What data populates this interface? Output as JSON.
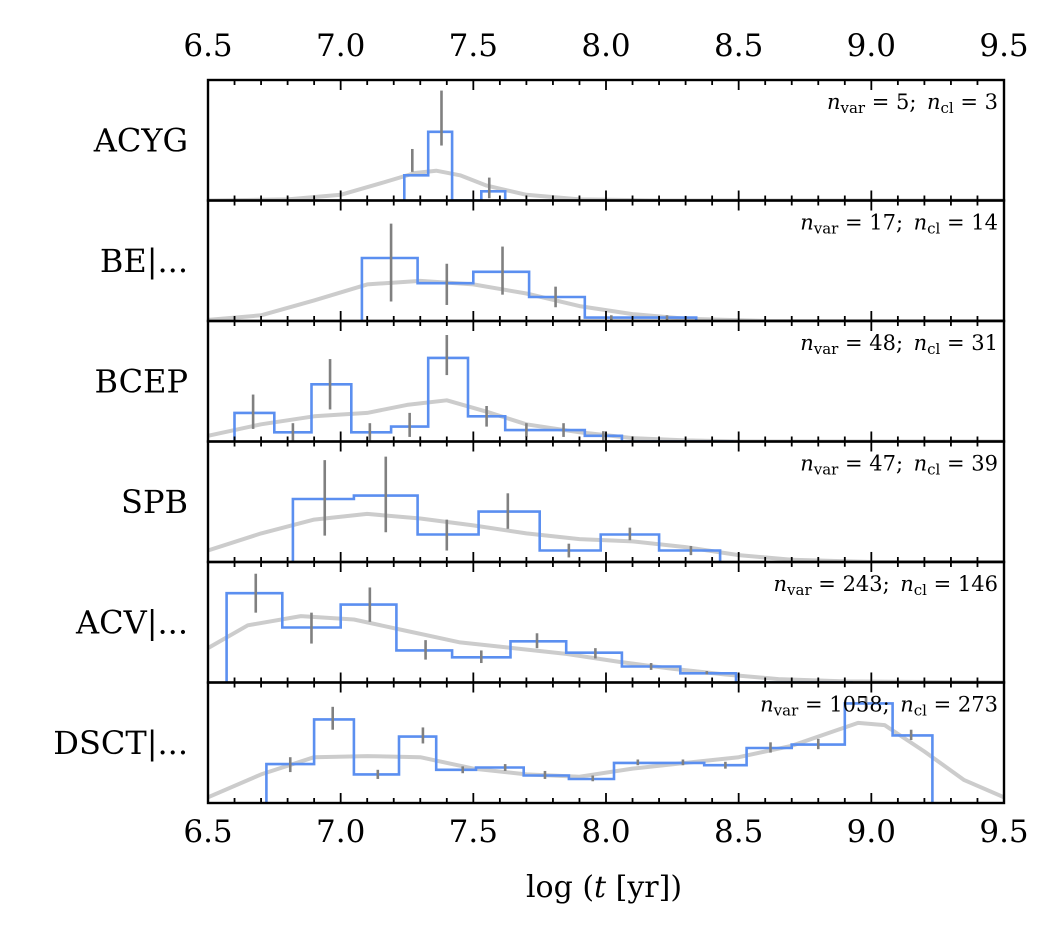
{
  "chart_data": {
    "type": "histogram",
    "xlabel": "log (t [yr])",
    "xlim": [
      6.5,
      9.5
    ],
    "xticks": [
      "6.5",
      "7.0",
      "7.5",
      "8.0",
      "8.5",
      "9.0",
      "9.5"
    ],
    "colors": {
      "hist": "#5b8ff0",
      "kde": "#cccccc",
      "errorbar": "#808080"
    },
    "panels": [
      {
        "label": "ACYG",
        "annotation": "n_var = 5; n_cl = 3",
        "ymax": 1.0,
        "bins": [
          [
            7.24,
            7.33,
            0.22
          ],
          [
            7.33,
            7.42,
            0.6
          ],
          [
            7.42,
            7.53,
            0.0
          ],
          [
            7.53,
            7.62,
            0.08
          ]
        ],
        "errorbars": [
          [
            7.27,
            0.25,
            0.45
          ],
          [
            7.38,
            0.48,
            0.96
          ],
          [
            7.56,
            0.02,
            0.2
          ]
        ],
        "kde": [
          [
            6.5,
            0.0
          ],
          [
            6.8,
            0.01
          ],
          [
            7.0,
            0.05
          ],
          [
            7.15,
            0.15
          ],
          [
            7.28,
            0.24
          ],
          [
            7.36,
            0.26
          ],
          [
            7.45,
            0.22
          ],
          [
            7.55,
            0.13
          ],
          [
            7.7,
            0.05
          ],
          [
            7.9,
            0.01
          ],
          [
            8.2,
            0.0
          ],
          [
            9.5,
            0.0
          ]
        ]
      },
      {
        "label": "BE|...",
        "annotation": "n_var = 17; n_cl = 14",
        "ymax": 1.0,
        "bins": [
          [
            7.08,
            7.29,
            0.55
          ],
          [
            7.29,
            7.5,
            0.33
          ],
          [
            7.5,
            7.71,
            0.43
          ],
          [
            7.71,
            7.92,
            0.21
          ],
          [
            7.92,
            8.13,
            0.03
          ],
          [
            8.13,
            8.34,
            0.03
          ]
        ],
        "errorbars": [
          [
            7.19,
            0.17,
            0.85
          ],
          [
            7.4,
            0.14,
            0.5
          ],
          [
            7.61,
            0.23,
            0.65
          ],
          [
            7.81,
            0.12,
            0.3
          ],
          [
            8.02,
            0.0,
            0.05
          ],
          [
            8.23,
            0.0,
            0.05
          ]
        ],
        "kde": [
          [
            6.5,
            0.01
          ],
          [
            6.7,
            0.05
          ],
          [
            6.9,
            0.18
          ],
          [
            7.1,
            0.32
          ],
          [
            7.3,
            0.35
          ],
          [
            7.5,
            0.32
          ],
          [
            7.7,
            0.24
          ],
          [
            7.9,
            0.13
          ],
          [
            8.1,
            0.06
          ],
          [
            8.3,
            0.02
          ],
          [
            8.6,
            0.0
          ],
          [
            9.5,
            0.0
          ]
        ]
      },
      {
        "label": "BCEP",
        "annotation": "n_var = 48; n_cl = 31",
        "ymax": 1.0,
        "bins": [
          [
            6.6,
            6.75,
            0.25
          ],
          [
            6.75,
            6.89,
            0.08
          ],
          [
            6.89,
            7.04,
            0.5
          ],
          [
            7.04,
            7.19,
            0.08
          ],
          [
            7.19,
            7.33,
            0.13
          ],
          [
            7.33,
            7.48,
            0.73
          ],
          [
            7.48,
            7.62,
            0.22
          ],
          [
            7.62,
            7.77,
            0.1
          ],
          [
            7.77,
            7.92,
            0.1
          ],
          [
            7.92,
            8.06,
            0.05
          ],
          [
            8.06,
            8.21,
            0.0
          ],
          [
            8.21,
            8.48,
            0.0
          ]
        ],
        "errorbars": [
          [
            6.67,
            0.11,
            0.41
          ],
          [
            6.82,
            0.0,
            0.16
          ],
          [
            6.96,
            0.28,
            0.72
          ],
          [
            7.11,
            0.0,
            0.16
          ],
          [
            7.26,
            0.04,
            0.25
          ],
          [
            7.4,
            0.58,
            0.93
          ],
          [
            7.55,
            0.13,
            0.31
          ],
          [
            7.7,
            0.04,
            0.16
          ],
          [
            7.84,
            0.04,
            0.16
          ],
          [
            7.99,
            0.01,
            0.09
          ]
        ],
        "kde": [
          [
            6.5,
            0.05
          ],
          [
            6.7,
            0.15
          ],
          [
            6.9,
            0.22
          ],
          [
            7.1,
            0.25
          ],
          [
            7.25,
            0.32
          ],
          [
            7.4,
            0.36
          ],
          [
            7.55,
            0.26
          ],
          [
            7.7,
            0.15
          ],
          [
            7.9,
            0.08
          ],
          [
            8.1,
            0.03
          ],
          [
            8.3,
            0.01
          ],
          [
            8.5,
            0.0
          ],
          [
            9.5,
            0.0
          ]
        ]
      },
      {
        "label": "SPB",
        "annotation": "n_var = 47; n_cl = 39",
        "ymax": 1.0,
        "bins": [
          [
            6.82,
            7.05,
            0.55
          ],
          [
            7.05,
            7.29,
            0.58
          ],
          [
            7.29,
            7.52,
            0.24
          ],
          [
            7.52,
            7.75,
            0.44
          ],
          [
            7.75,
            7.98,
            0.1
          ],
          [
            7.98,
            8.2,
            0.24
          ],
          [
            8.2,
            8.43,
            0.1
          ]
        ],
        "errorbars": [
          [
            6.94,
            0.23,
            0.89
          ],
          [
            7.17,
            0.26,
            0.92
          ],
          [
            7.4,
            0.1,
            0.37
          ],
          [
            7.63,
            0.29,
            0.6
          ],
          [
            7.86,
            0.04,
            0.16
          ],
          [
            8.09,
            0.19,
            0.3
          ],
          [
            8.32,
            0.06,
            0.14
          ]
        ],
        "kde": [
          [
            6.5,
            0.1
          ],
          [
            6.7,
            0.25
          ],
          [
            6.9,
            0.37
          ],
          [
            7.1,
            0.42
          ],
          [
            7.3,
            0.38
          ],
          [
            7.5,
            0.32
          ],
          [
            7.7,
            0.25
          ],
          [
            7.9,
            0.2
          ],
          [
            8.1,
            0.18
          ],
          [
            8.3,
            0.13
          ],
          [
            8.5,
            0.06
          ],
          [
            8.7,
            0.02
          ],
          [
            9.0,
            0.0
          ],
          [
            9.5,
            0.0
          ]
        ]
      },
      {
        "label": "ACV|...",
        "annotation": "n_var = 243; n_cl = 146",
        "ymax": 1.0,
        "bins": [
          [
            6.57,
            6.78,
            0.78
          ],
          [
            6.78,
            7.0,
            0.48
          ],
          [
            7.0,
            7.21,
            0.68
          ],
          [
            7.21,
            7.42,
            0.28
          ],
          [
            7.42,
            7.64,
            0.22
          ],
          [
            7.64,
            7.85,
            0.36
          ],
          [
            7.85,
            8.06,
            0.26
          ],
          [
            8.06,
            8.28,
            0.14
          ],
          [
            8.28,
            8.49,
            0.08
          ],
          [
            8.49,
            8.93,
            0.0
          ]
        ],
        "errorbars": [
          [
            6.68,
            0.61,
            0.95
          ],
          [
            6.89,
            0.34,
            0.61
          ],
          [
            7.11,
            0.53,
            0.83
          ],
          [
            7.32,
            0.2,
            0.37
          ],
          [
            7.53,
            0.17,
            0.28
          ],
          [
            7.74,
            0.3,
            0.43
          ],
          [
            7.96,
            0.21,
            0.3
          ],
          [
            8.17,
            0.11,
            0.17
          ],
          [
            8.38,
            0.07,
            0.1
          ]
        ],
        "kde": [
          [
            6.5,
            0.3
          ],
          [
            6.65,
            0.5
          ],
          [
            6.85,
            0.58
          ],
          [
            7.05,
            0.55
          ],
          [
            7.25,
            0.45
          ],
          [
            7.45,
            0.35
          ],
          [
            7.65,
            0.3
          ],
          [
            7.85,
            0.25
          ],
          [
            8.05,
            0.18
          ],
          [
            8.25,
            0.12
          ],
          [
            8.45,
            0.07
          ],
          [
            8.65,
            0.03
          ],
          [
            8.9,
            0.01
          ],
          [
            9.5,
            0.0
          ]
        ]
      },
      {
        "label": "DSCT|...",
        "annotation": "n_var = 1058; n_cl = 273",
        "ymax": 1.0,
        "bins": [
          [
            6.72,
            6.9,
            0.34
          ],
          [
            6.9,
            7.05,
            0.73
          ],
          [
            7.05,
            7.22,
            0.25
          ],
          [
            7.22,
            7.36,
            0.58
          ],
          [
            7.36,
            7.51,
            0.29
          ],
          [
            7.51,
            7.69,
            0.31
          ],
          [
            7.69,
            7.86,
            0.24
          ],
          [
            7.86,
            8.03,
            0.21
          ],
          [
            8.03,
            8.2,
            0.35
          ],
          [
            8.2,
            8.37,
            0.35
          ],
          [
            8.37,
            8.53,
            0.33
          ],
          [
            8.53,
            8.7,
            0.48
          ],
          [
            8.7,
            8.9,
            0.51
          ],
          [
            8.9,
            9.08,
            0.87
          ],
          [
            9.08,
            9.23,
            0.59
          ]
        ],
        "errorbars": [
          [
            6.81,
            0.27,
            0.4
          ],
          [
            6.97,
            0.64,
            0.84
          ],
          [
            7.14,
            0.21,
            0.29
          ],
          [
            7.31,
            0.52,
            0.66
          ],
          [
            7.46,
            0.26,
            0.32
          ],
          [
            7.62,
            0.28,
            0.34
          ],
          [
            7.77,
            0.21,
            0.28
          ],
          [
            7.95,
            0.19,
            0.24
          ],
          [
            8.12,
            0.33,
            0.38
          ],
          [
            8.29,
            0.33,
            0.38
          ],
          [
            8.45,
            0.3,
            0.36
          ],
          [
            8.62,
            0.44,
            0.53
          ],
          [
            8.8,
            0.47,
            0.56
          ],
          [
            8.98,
            0.82,
            0.93
          ],
          [
            9.15,
            0.55,
            0.64
          ]
        ],
        "kde": [
          [
            6.5,
            0.05
          ],
          [
            6.7,
            0.25
          ],
          [
            6.9,
            0.4
          ],
          [
            7.1,
            0.41
          ],
          [
            7.3,
            0.4
          ],
          [
            7.5,
            0.3
          ],
          [
            7.7,
            0.25
          ],
          [
            7.9,
            0.23
          ],
          [
            8.1,
            0.3
          ],
          [
            8.3,
            0.35
          ],
          [
            8.5,
            0.4
          ],
          [
            8.7,
            0.5
          ],
          [
            8.85,
            0.62
          ],
          [
            8.95,
            0.7
          ],
          [
            9.05,
            0.68
          ],
          [
            9.2,
            0.45
          ],
          [
            9.35,
            0.2
          ],
          [
            9.5,
            0.05
          ]
        ]
      }
    ]
  }
}
